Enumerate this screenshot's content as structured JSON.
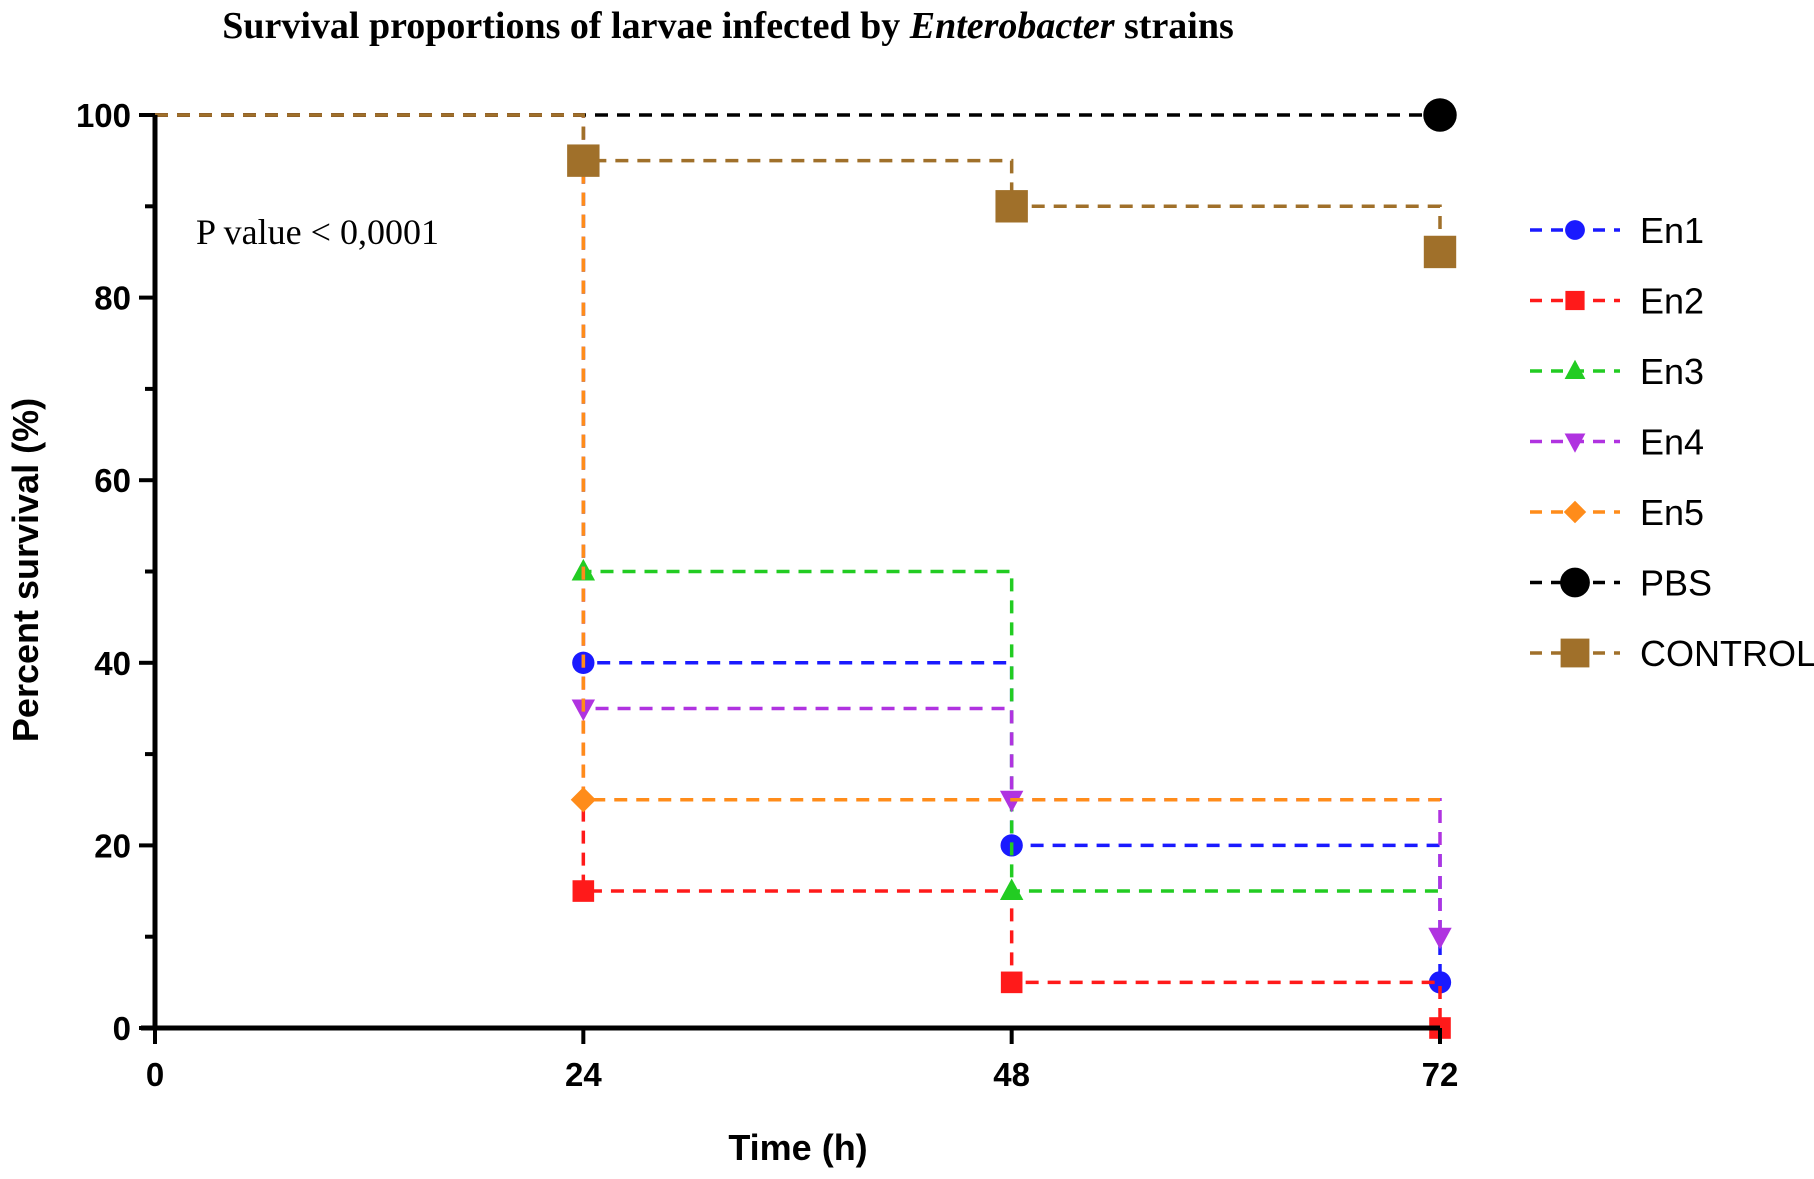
{
  "chart_data": {
    "type": "line",
    "title_parts": [
      "Survival proportions of larvae infected by ",
      "Enterobacter",
      " strains"
    ],
    "xlabel": "Time (h)",
    "ylabel": "Percent survival (%)",
    "x": [
      0,
      24,
      48,
      72
    ],
    "x_ticks": [
      "0",
      "24",
      "48",
      "72"
    ],
    "y_ticks": [
      "0",
      "20",
      "40",
      "60",
      "80",
      "100"
    ],
    "xlim": [
      0,
      72
    ],
    "ylim": [
      0,
      100
    ],
    "step": true,
    "legend_position": "right",
    "annotation": "P value  <  0,0001",
    "series": [
      {
        "name": "En1",
        "color": "#1a1aff",
        "marker": "circle",
        "values": [
          100,
          40,
          20,
          5
        ]
      },
      {
        "name": "En2",
        "color": "#ff1a1a",
        "marker": "square",
        "values": [
          100,
          15,
          5,
          0
        ]
      },
      {
        "name": "En3",
        "color": "#22cc22",
        "marker": "triangle-up",
        "values": [
          100,
          50,
          15,
          15
        ]
      },
      {
        "name": "En4",
        "color": "#b033e0",
        "marker": "triangle-down",
        "values": [
          100,
          35,
          25,
          10
        ]
      },
      {
        "name": "En5",
        "color": "#ff8c1a",
        "marker": "diamond",
        "values": [
          100,
          25,
          25,
          25
        ]
      },
      {
        "name": "PBS",
        "color": "#000000",
        "marker": "circle",
        "values": [
          100,
          100,
          100,
          100
        ]
      },
      {
        "name": "CONTROL",
        "color": "#a0702a",
        "marker": "square",
        "values": [
          100,
          95,
          90,
          85
        ]
      }
    ]
  }
}
